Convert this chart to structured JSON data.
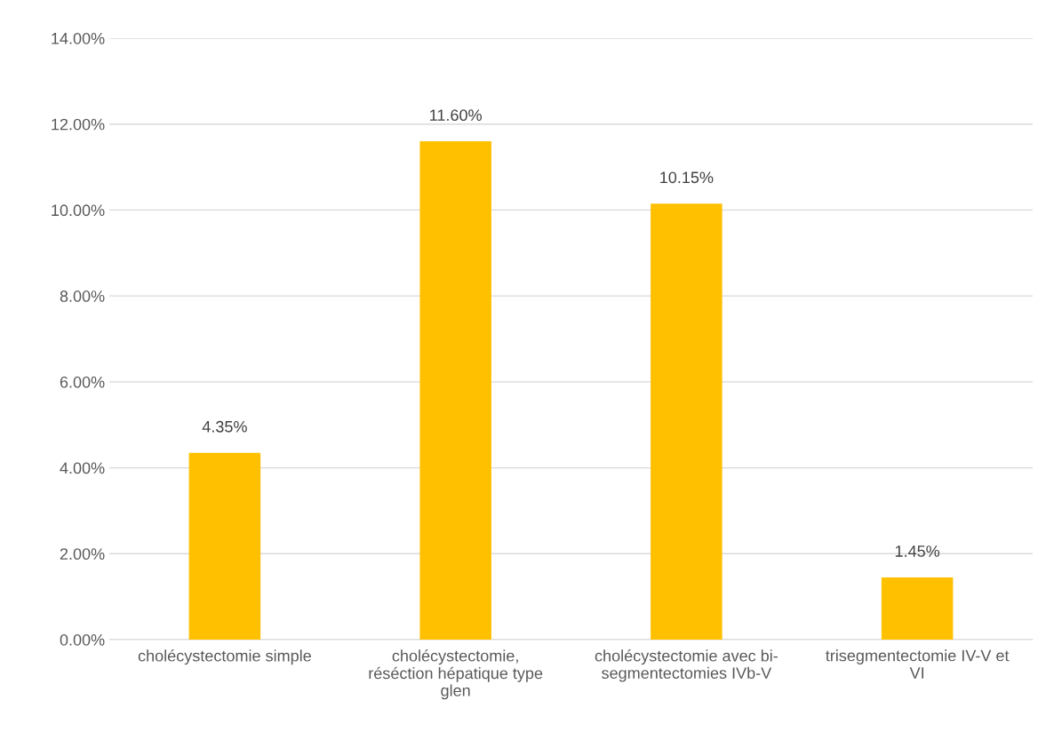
{
  "chart_data": {
    "type": "bar",
    "categories": [
      "cholécystectomie simple",
      "cholécystectomie, réséction hépatique type glen",
      "cholécystectomie avec bi-segmentectomies IVb-V",
      "trisegmentectomie IV-V et VI"
    ],
    "values": [
      4.35,
      11.6,
      10.15,
      1.45
    ],
    "value_labels": [
      "4.35%",
      "11.60%",
      "10.15%",
      "1.45%"
    ],
    "color": "#ffc000",
    "ylim": [
      0,
      14
    ],
    "yticks": [
      {
        "value": 0,
        "label": "0.00%"
      },
      {
        "value": 2,
        "label": "2.00%"
      },
      {
        "value": 4,
        "label": "4.00%"
      },
      {
        "value": 6,
        "label": "6.00%"
      },
      {
        "value": 8,
        "label": "8.00%"
      },
      {
        "value": 10,
        "label": "10.00%"
      },
      {
        "value": 12,
        "label": "12.00%"
      },
      {
        "value": 14,
        "label": "14.00%"
      }
    ],
    "grid": "y"
  }
}
